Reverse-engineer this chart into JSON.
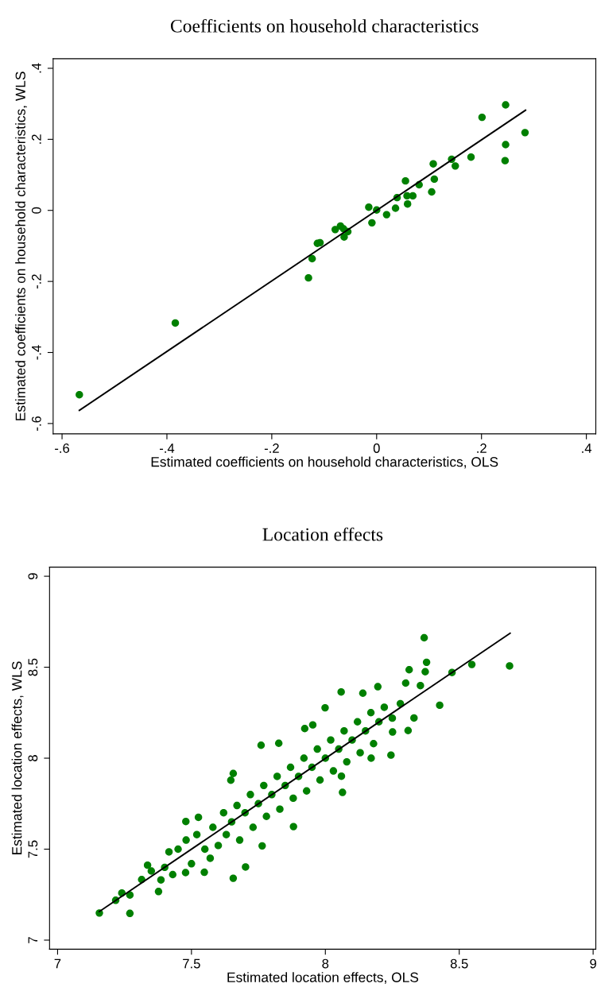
{
  "chart_data": [
    {
      "type": "scatter",
      "title": "Coefficients on household characteristics",
      "xlabel": "Estimated coefficients on household characteristics, OLS",
      "ylabel": "Estimated coefficients on household characteristics, WLS",
      "xlim": [
        -0.617,
        0.418
      ],
      "ylim": [
        -0.629,
        0.427
      ],
      "xticks": [
        {
          "value": -0.6,
          "label": "-.6"
        },
        {
          "value": -0.4,
          "label": "-.4"
        },
        {
          "value": -0.2,
          "label": "-.2"
        },
        0,
        {
          "value": 0.2,
          "label": ".2"
        },
        {
          "value": 0.4,
          "label": ".4"
        }
      ],
      "yticks": [
        {
          "value": -0.6,
          "label": "-.6"
        },
        {
          "value": -0.4,
          "label": "-.4"
        },
        {
          "value": -0.2,
          "label": "-.2"
        },
        0,
        {
          "value": 0.2,
          "label": ".2"
        },
        {
          "value": 0.4,
          "label": ".4"
        }
      ],
      "grid": false,
      "marker": "circle",
      "series": [
        {
          "color": "#008000",
          "x": [
            -0.567,
            -0.384,
            -0.13,
            -0.123,
            -0.113,
            -0.108,
            -0.079,
            -0.069,
            -0.063,
            -0.062,
            -0.055,
            -0.015,
            -0.009,
            0.0,
            0.019,
            0.036,
            0.039,
            0.055,
            0.058,
            0.059,
            0.069,
            0.081,
            0.105,
            0.108,
            0.11,
            0.143,
            0.15,
            0.18,
            0.201,
            0.245,
            0.246,
            0.246,
            0.283
          ],
          "values": [
            -0.519,
            -0.317,
            -0.19,
            -0.136,
            -0.093,
            -0.091,
            -0.054,
            -0.044,
            -0.052,
            -0.075,
            -0.06,
            0.009,
            -0.035,
            0.001,
            -0.012,
            0.006,
            0.036,
            0.083,
            0.041,
            0.018,
            0.041,
            0.072,
            0.052,
            0.131,
            0.088,
            0.144,
            0.125,
            0.15,
            0.262,
            0.14,
            0.185,
            0.297,
            0.219
          ]
        },
        {
          "type": "line",
          "marker": "none",
          "color": "#000000",
          "x": [
            -0.567,
            0.284
          ],
          "values": [
            -0.563,
            0.282
          ]
        }
      ]
    },
    {
      "type": "scatter",
      "title": "Location effects",
      "xlabel": "Estimated location effects, OLS",
      "ylabel": "Estimated location effects, WLS",
      "xlim": [
        6.97,
        9.01
      ],
      "ylim": [
        6.95,
        9.05
      ],
      "xticks": [
        7,
        7.5,
        8,
        8.5,
        9
      ],
      "yticks": [
        7,
        7.5,
        8,
        8.5,
        9
      ],
      "grid": false,
      "marker": "circle",
      "series": [
        {
          "color": "#008000",
          "x": [
            7.156,
            7.27,
            7.217,
            7.24,
            7.27,
            7.314,
            7.336,
            7.377,
            7.386,
            7.416,
            7.479,
            7.526,
            7.478,
            7.548,
            7.656,
            7.702,
            7.647,
            7.656,
            7.76,
            7.826,
            7.764,
            7.881,
            7.999,
            8.059,
            7.953,
            7.923,
            8.064,
            8.06,
            8.14,
            8.196,
            8.245,
            8.171,
            8.309,
            8.313,
            8.369,
            8.378,
            8.373,
            8.3,
            8.427,
            8.473,
            8.547,
            8.688,
            8.355,
            8.331,
            8.251,
            7.45,
            7.5,
            7.52,
            7.55,
            7.58,
            7.6,
            7.62,
            7.63,
            7.65,
            7.67,
            7.68,
            7.7,
            7.72,
            7.73,
            7.75,
            7.77,
            7.78,
            7.8,
            7.82,
            7.83,
            7.85,
            7.87,
            7.88,
            7.9,
            7.92,
            7.93,
            7.95,
            7.97,
            7.98,
            8.0,
            8.02,
            8.03,
            8.05,
            8.07,
            8.08,
            8.1,
            8.12,
            8.13,
            8.15,
            8.17,
            8.18,
            8.2,
            8.22,
            8.25,
            8.28,
            7.4,
            7.35,
            7.43,
            7.48,
            7.57
          ],
          "values": [
            7.149,
            7.147,
            7.219,
            7.259,
            7.248,
            7.333,
            7.412,
            7.267,
            7.331,
            7.485,
            7.652,
            7.675,
            7.371,
            7.373,
            7.34,
            7.402,
            7.879,
            7.916,
            8.071,
            8.082,
            7.518,
            7.624,
            8.277,
            8.364,
            8.183,
            8.163,
            7.812,
            7.901,
            8.357,
            8.393,
            8.017,
            8.0,
            8.152,
            8.486,
            8.662,
            8.527,
            8.475,
            8.413,
            8.291,
            8.471,
            8.515,
            8.507,
            8.399,
            8.221,
            8.144,
            7.5,
            7.42,
            7.58,
            7.5,
            7.62,
            7.52,
            7.7,
            7.58,
            7.65,
            7.74,
            7.55,
            7.7,
            7.8,
            7.62,
            7.75,
            7.85,
            7.68,
            7.8,
            7.9,
            7.72,
            7.85,
            7.95,
            7.78,
            7.9,
            8.0,
            7.82,
            7.95,
            8.05,
            7.88,
            8.0,
            8.1,
            7.93,
            8.05,
            8.15,
            7.98,
            8.1,
            8.2,
            8.03,
            8.15,
            8.25,
            8.08,
            8.2,
            8.28,
            8.22,
            8.3,
            7.4,
            7.38,
            7.36,
            7.55,
            7.45
          ]
        },
        {
          "type": "line",
          "marker": "none",
          "color": "#000000",
          "x": [
            7.156,
            8.69
          ],
          "values": [
            7.157,
            8.687
          ]
        }
      ]
    }
  ]
}
